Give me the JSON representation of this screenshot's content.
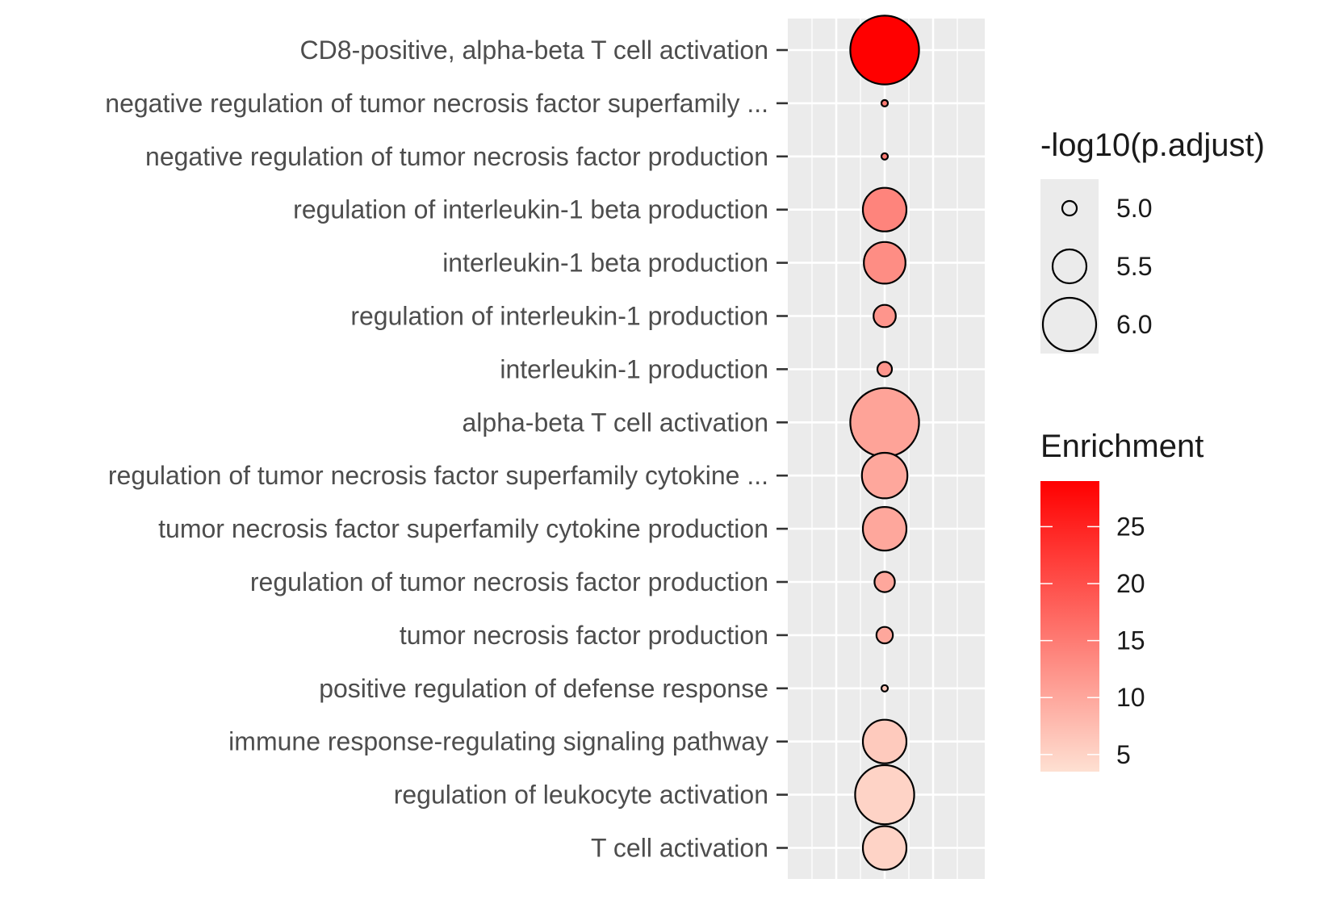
{
  "chart_data": {
    "type": "scatter",
    "x_axis": {
      "label": "",
      "tick_labels": []
    },
    "categories": [
      "CD8-positive, alpha-beta T cell activation",
      "negative regulation of tumor necrosis factor superfamily ...",
      "negative regulation of tumor necrosis factor production",
      "regulation of interleukin-1 beta production",
      "interleukin-1 beta production",
      "regulation of interleukin-1 production",
      "interleukin-1 production",
      "alpha-beta T cell activation",
      "regulation of tumor necrosis factor superfamily cytokine ...",
      "tumor necrosis factor superfamily cytokine production",
      "regulation of tumor necrosis factor production",
      "tumor necrosis factor production",
      "positive regulation of defense response",
      "immune response-regulating signaling pathway",
      "regulation of leukocyte activation",
      "T cell activation"
    ],
    "points": [
      {
        "neglog10_padj": 6.4,
        "enrichment": 29.0
      },
      {
        "neglog10_padj": 4.75,
        "enrichment": 15.0
      },
      {
        "neglog10_padj": 4.75,
        "enrichment": 15.0
      },
      {
        "neglog10_padj": 5.75,
        "enrichment": 14.0
      },
      {
        "neglog10_padj": 5.7,
        "enrichment": 13.0
      },
      {
        "neglog10_padj": 5.2,
        "enrichment": 12.0
      },
      {
        "neglog10_padj": 5.0,
        "enrichment": 12.0
      },
      {
        "neglog10_padj": 6.4,
        "enrichment": 10.5
      },
      {
        "neglog10_padj": 5.8,
        "enrichment": 10.0
      },
      {
        "neglog10_padj": 5.75,
        "enrichment": 10.0
      },
      {
        "neglog10_padj": 5.15,
        "enrichment": 10.0
      },
      {
        "neglog10_padj": 5.05,
        "enrichment": 10.0
      },
      {
        "neglog10_padj": 4.7,
        "enrichment": 6.0
      },
      {
        "neglog10_padj": 5.75,
        "enrichment": 6.0
      },
      {
        "neglog10_padj": 6.15,
        "enrichment": 5.0
      },
      {
        "neglog10_padj": 5.75,
        "enrichment": 5.0
      }
    ],
    "size_legend": {
      "title": "-log10(p.adjust)",
      "values": [
        5.0,
        5.5,
        6.0
      ],
      "labels": [
        "5.0",
        "5.5",
        "6.0"
      ]
    },
    "color_legend": {
      "title": "Enrichment",
      "range": [
        3.5,
        29
      ],
      "ticks": [
        5,
        10,
        15,
        20,
        25
      ],
      "tick_labels": [
        "5",
        "10",
        "15",
        "20",
        "25"
      ],
      "low_color": "#fee0d2",
      "high_color": "#ff0000"
    },
    "colors": {
      "panel_background": "#ebebeb",
      "grid_line": "#ffffff",
      "point_stroke": "#000000",
      "axis_text": "#4d4d4d"
    },
    "grid": true,
    "legend_position": "right"
  }
}
